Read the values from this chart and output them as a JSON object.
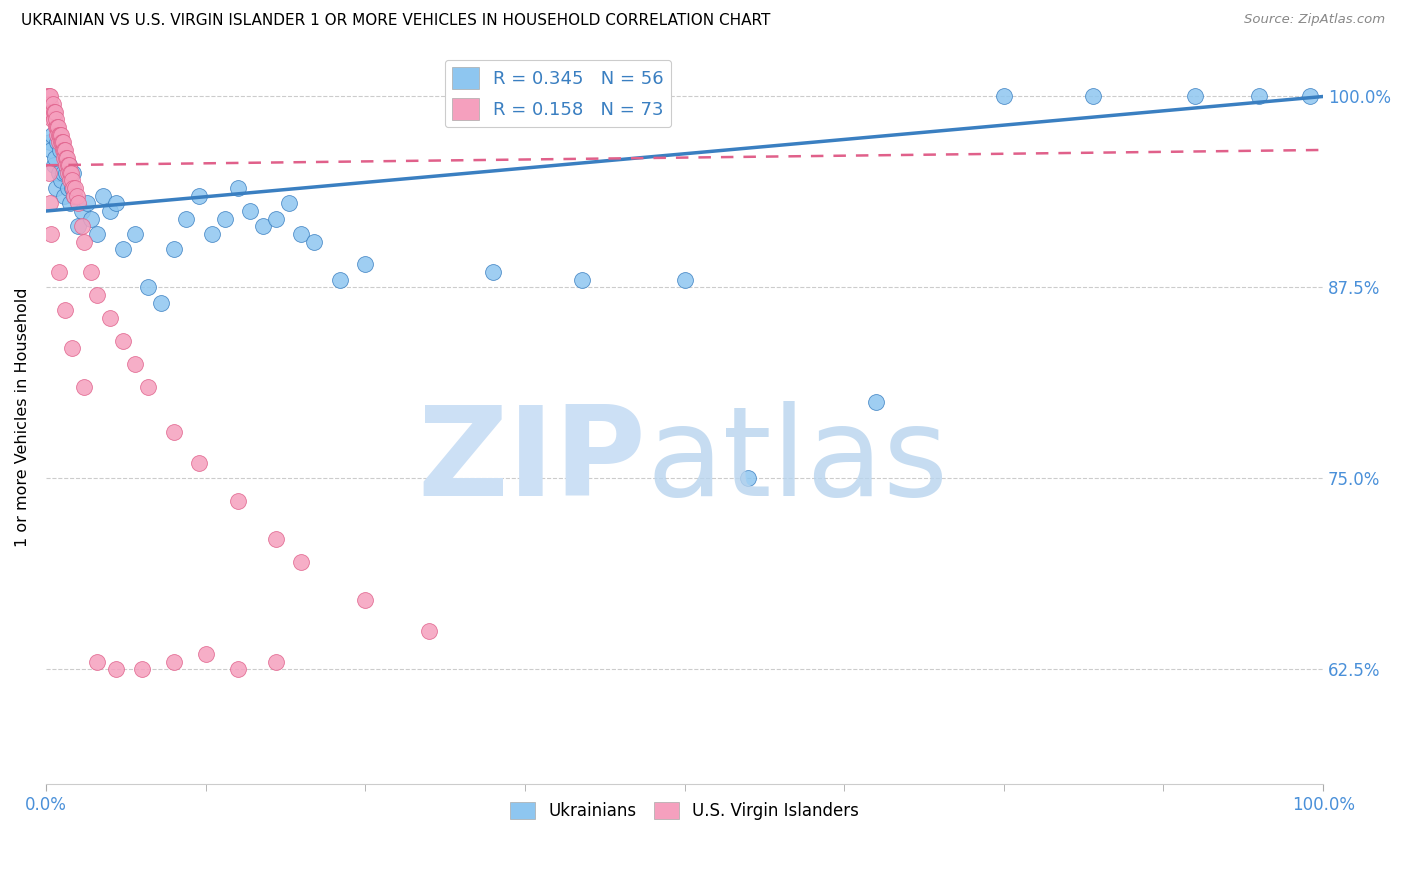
{
  "title": "UKRAINIAN VS U.S. VIRGIN ISLANDER 1 OR MORE VEHICLES IN HOUSEHOLD CORRELATION CHART",
  "source": "Source: ZipAtlas.com",
  "ylabel": "1 or more Vehicles in Household",
  "color_ukrainian": "#8ec6f0",
  "color_usvi": "#f5a0be",
  "color_trend_ukrainian": "#3a7fc1",
  "color_trend_usvi": "#e0608a",
  "color_right_axis": "#4a90d9",
  "watermark_zip_color": "#cce0f5",
  "watermark_atlas_color": "#b8d4ee",
  "ytick_vals": [
    62.5,
    75.0,
    87.5,
    100.0
  ],
  "ylim_low": 55.0,
  "ylim_high": 103.0,
  "xlim_low": 0.0,
  "xlim_high": 100.0,
  "uk_x": [
    0.3,
    0.4,
    0.5,
    0.6,
    0.7,
    0.8,
    0.9,
    1.0,
    1.1,
    1.2,
    1.3,
    1.4,
    1.5,
    1.6,
    1.7,
    1.8,
    1.9,
    2.0,
    2.1,
    2.2,
    2.5,
    2.8,
    3.2,
    3.5,
    4.0,
    4.5,
    5.0,
    5.5,
    6.0,
    7.0,
    8.0,
    9.0,
    10.0,
    11.0,
    12.0,
    13.0,
    14.0,
    15.0,
    16.0,
    17.0,
    18.0,
    19.0,
    20.0,
    21.0,
    23.0,
    25.0,
    35.0,
    42.0,
    50.0,
    55.0,
    65.0,
    75.0,
    82.0,
    90.0,
    95.0,
    99.0
  ],
  "uk_y": [
    97.0,
    96.5,
    97.5,
    95.5,
    96.0,
    94.0,
    97.0,
    95.0,
    96.5,
    94.5,
    95.0,
    93.5,
    96.0,
    95.0,
    94.0,
    95.5,
    93.0,
    94.0,
    95.0,
    93.5,
    91.5,
    92.5,
    93.0,
    92.0,
    91.0,
    93.5,
    92.5,
    93.0,
    90.0,
    91.0,
    87.5,
    86.5,
    90.0,
    92.0,
    93.5,
    91.0,
    92.0,
    94.0,
    92.5,
    91.5,
    92.0,
    93.0,
    91.0,
    90.5,
    88.0,
    89.0,
    88.5,
    88.0,
    88.0,
    75.0,
    80.0,
    100.0,
    100.0,
    100.0,
    100.0,
    100.0
  ],
  "usvi_x": [
    0.1,
    0.15,
    0.2,
    0.25,
    0.3,
    0.35,
    0.4,
    0.45,
    0.5,
    0.55,
    0.6,
    0.65,
    0.7,
    0.75,
    0.8,
    0.85,
    0.9,
    0.95,
    1.0,
    1.05,
    1.1,
    1.15,
    1.2,
    1.25,
    1.3,
    1.35,
    1.4,
    1.45,
    1.5,
    1.55,
    1.6,
    1.65,
    1.7,
    1.75,
    1.8,
    1.85,
    1.9,
    1.95,
    2.0,
    2.1,
    2.2,
    2.3,
    2.4,
    2.5,
    2.8,
    3.0,
    3.5,
    4.0,
    5.0,
    6.0,
    7.0,
    8.0,
    10.0,
    12.0,
    15.0,
    18.0,
    20.0,
    25.0,
    30.0,
    0.2,
    0.3,
    0.4,
    1.0,
    1.5,
    2.0,
    3.0,
    4.0,
    5.5,
    7.5,
    10.0,
    12.5,
    15.0,
    18.0
  ],
  "usvi_y": [
    100.0,
    99.5,
    100.0,
    99.0,
    99.5,
    100.0,
    99.0,
    98.5,
    99.0,
    99.5,
    99.0,
    98.5,
    99.0,
    98.0,
    98.5,
    98.0,
    97.5,
    98.0,
    97.5,
    97.0,
    97.5,
    97.0,
    97.5,
    97.0,
    96.5,
    97.0,
    96.5,
    96.0,
    96.5,
    96.0,
    95.5,
    96.0,
    95.5,
    95.0,
    95.5,
    95.0,
    94.5,
    95.0,
    94.5,
    94.0,
    93.5,
    94.0,
    93.5,
    93.0,
    91.5,
    90.5,
    88.5,
    87.0,
    85.5,
    84.0,
    82.5,
    81.0,
    78.0,
    76.0,
    73.5,
    71.0,
    69.5,
    67.0,
    65.0,
    95.0,
    93.0,
    91.0,
    88.5,
    86.0,
    83.5,
    81.0,
    63.0,
    62.5,
    62.5,
    63.0,
    63.5,
    62.5,
    63.0
  ],
  "trend_uk_x0": 0.0,
  "trend_uk_y0": 92.5,
  "trend_uk_x1": 100.0,
  "trend_uk_y1": 100.0,
  "trend_usvi_x0": 0.0,
  "trend_usvi_y0": 95.5,
  "trend_usvi_x1": 100.0,
  "trend_usvi_y1": 96.5
}
